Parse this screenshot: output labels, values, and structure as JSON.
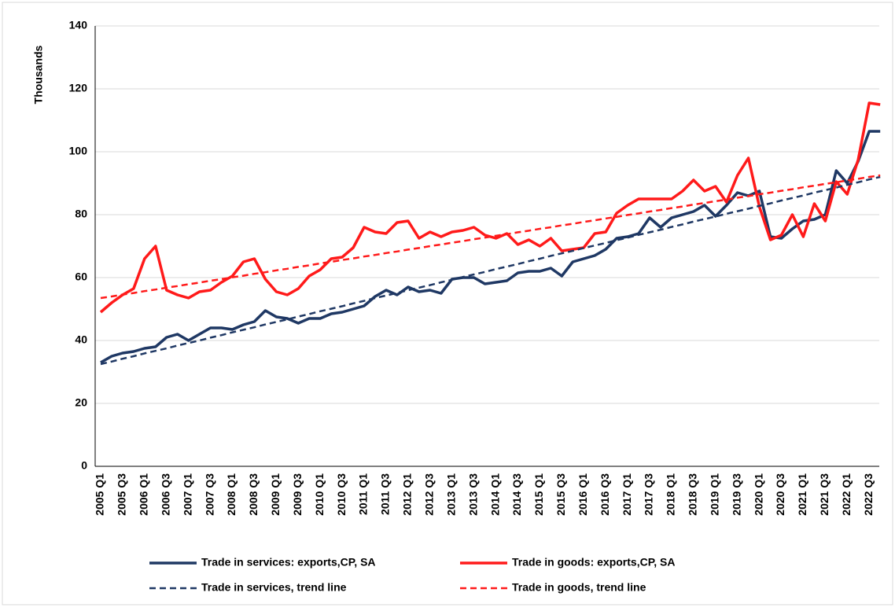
{
  "chart_data": {
    "type": "line",
    "y_label": "Thousands",
    "categories": [
      "2005 Q1",
      null,
      "2005 Q3",
      null,
      "2006 Q1",
      null,
      "2006 Q3",
      null,
      "2007 Q1",
      null,
      "2007 Q3",
      null,
      "2008 Q1",
      null,
      "2008 Q3",
      null,
      "2009 Q1",
      null,
      "2009 Q3",
      null,
      "2010 Q1",
      null,
      "2010 Q3",
      null,
      "2011 Q1",
      null,
      "2011 Q3",
      null,
      "2012 Q1",
      null,
      "2012 Q3",
      null,
      "2013 Q1",
      null,
      "2013 Q3",
      null,
      "2014 Q1",
      null,
      "2014 Q3",
      null,
      "2015 Q1",
      null,
      "2015 Q3",
      null,
      "2016 Q1",
      null,
      "2016 Q3",
      null,
      "2017 Q1",
      null,
      "2017 Q3",
      null,
      "2018 Q1",
      null,
      "2018 Q3",
      null,
      "2019 Q1",
      null,
      "2019 Q3",
      null,
      "2020 Q1",
      null,
      "2020 Q3",
      null,
      "2021 Q1",
      null,
      "2021 Q3",
      null,
      "2022 Q1",
      null,
      "2022 Q3",
      null
    ],
    "series": [
      {
        "name": "Trade in services: exports,CP, SA",
        "color": "#1f3864",
        "style": "solid",
        "values": [
          33,
          35,
          36,
          36.5,
          37.5,
          38,
          41,
          42,
          40,
          42,
          44,
          44,
          43.5,
          45,
          46,
          49.5,
          47.5,
          47,
          45.5,
          47,
          47,
          48.5,
          49,
          50,
          51,
          54,
          56,
          54.5,
          57,
          55.5,
          56,
          55,
          59.5,
          60,
          60,
          58,
          58.5,
          59,
          61.5,
          62,
          62,
          63,
          60.5,
          65,
          66,
          67,
          69,
          72.5,
          73,
          74,
          79,
          76,
          79,
          80,
          81,
          83,
          79.5,
          83,
          87,
          86,
          87.5,
          73,
          72.5,
          75.5,
          78,
          78.5,
          80,
          94,
          90,
          97,
          106.5,
          106.5
        ]
      },
      {
        "name": "Trade in goods: exports,CP, SA",
        "color": "#ff1a1a",
        "style": "solid",
        "values": [
          49,
          52,
          54.5,
          56.5,
          66,
          70,
          56,
          54.5,
          53.5,
          55.5,
          56,
          58.5,
          60.5,
          65,
          66,
          59.5,
          55.5,
          54.5,
          56.5,
          60.5,
          62.5,
          66,
          66.5,
          69.5,
          76,
          74.5,
          74,
          77.5,
          78,
          72.5,
          74.5,
          73,
          74.5,
          75,
          76,
          73.5,
          72.5,
          74,
          70.5,
          72,
          70,
          72.5,
          68.5,
          69,
          69.5,
          74,
          74.5,
          80.5,
          83,
          85,
          85,
          85,
          85,
          87.5,
          91,
          87.5,
          89,
          84,
          92.5,
          98,
          82.5,
          72,
          73.5,
          80,
          73,
          83.5,
          78,
          90.5,
          86.5,
          97.5,
          115.5,
          115
        ]
      },
      {
        "name": "Trade in services, trend line",
        "color": "#1f3864",
        "style": "dashed",
        "values": [
          32.5,
          33.3,
          34.2,
          35.0,
          35.9,
          36.7,
          37.5,
          38.4,
          39.2,
          40.0,
          40.9,
          41.7,
          42.6,
          43.4,
          44.2,
          45.1,
          45.9,
          46.7,
          47.6,
          48.4,
          49.3,
          50.1,
          50.9,
          51.8,
          52.6,
          53.5,
          54.3,
          55.1,
          56.0,
          56.8,
          57.6,
          58.5,
          59.3,
          60.2,
          61.0,
          61.8,
          62.7,
          63.5,
          64.3,
          65.2,
          66.0,
          66.9,
          67.7,
          68.5,
          69.4,
          70.2,
          71.0,
          71.9,
          72.7,
          73.6,
          74.4,
          75.2,
          76.1,
          76.9,
          77.8,
          78.6,
          79.4,
          80.3,
          81.1,
          81.9,
          82.8,
          83.6,
          84.5,
          85.3,
          86.1,
          87.0,
          87.8,
          88.6,
          89.5,
          90.3,
          91.2,
          92.0
        ]
      },
      {
        "name": "Trade in goods, trend line",
        "color": "#ff1a1a",
        "style": "dashed",
        "values": [
          53.5,
          54.0,
          54.6,
          55.1,
          55.7,
          56.2,
          56.8,
          57.3,
          57.9,
          58.4,
          59.0,
          59.5,
          60.1,
          60.6,
          61.2,
          61.7,
          62.3,
          62.8,
          63.4,
          63.9,
          64.5,
          65.0,
          65.6,
          66.1,
          66.7,
          67.2,
          67.8,
          68.3,
          68.9,
          69.4,
          70.0,
          70.5,
          71.1,
          71.6,
          72.2,
          72.7,
          73.3,
          73.8,
          74.4,
          74.9,
          75.5,
          76.0,
          76.6,
          77.1,
          77.7,
          78.2,
          78.8,
          79.3,
          79.9,
          80.4,
          81.0,
          81.5,
          82.1,
          82.6,
          83.2,
          83.7,
          84.3,
          84.8,
          85.4,
          85.9,
          86.5,
          87.0,
          87.6,
          88.1,
          88.7,
          89.2,
          89.8,
          90.3,
          90.9,
          91.4,
          92.0,
          92.5
        ]
      }
    ],
    "ylim": [
      0,
      140
    ],
    "yticks": [
      0,
      20,
      40,
      60,
      80,
      100,
      120,
      140
    ],
    "grid": true
  }
}
